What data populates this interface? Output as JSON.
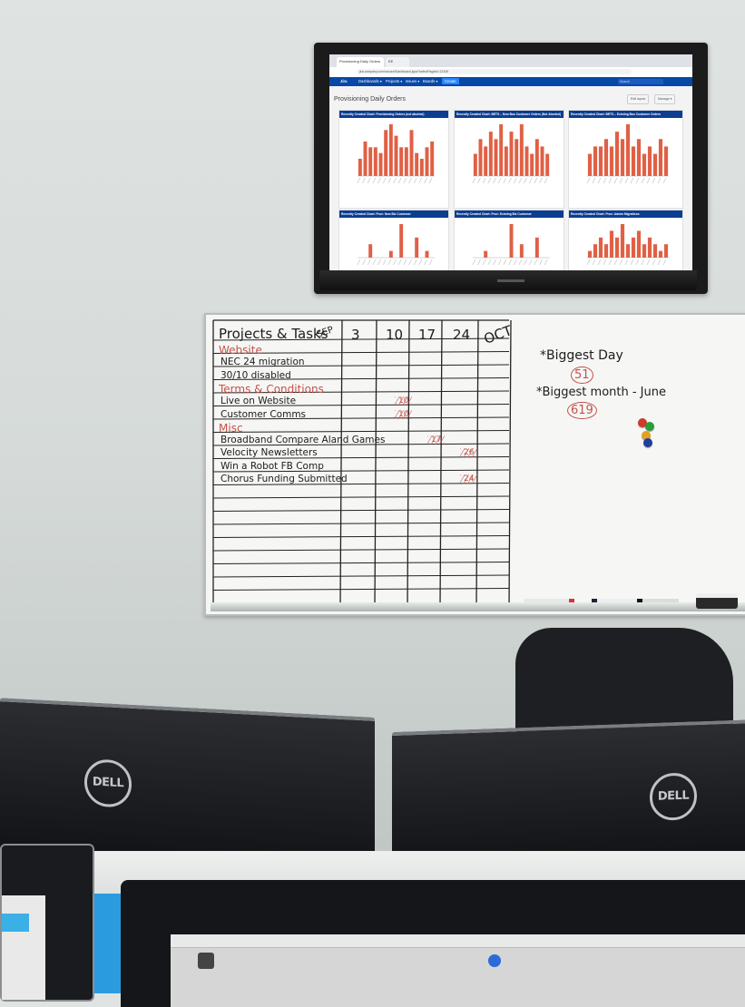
{
  "browser": {
    "tabs": [
      "Provisioning Daily Orders",
      "EE"
    ],
    "url": "jira.company.com/secure/Dashboard.jspa?selectPageId=12345"
  },
  "jira": {
    "logo": "Jira",
    "nav": [
      "Dashboards ▾",
      "Projects ▾",
      "Issues ▾",
      "Boards ▾"
    ],
    "create": "Create",
    "search_placeholder": "Search",
    "dashboard_title": "Provisioning Daily Orders",
    "buttons": [
      "Edit layout",
      "Manage ▾"
    ]
  },
  "gadgets": [
    {
      "title": "Recently Created Chart: Provisioning Orders (not aborted)",
      "values": [
        3,
        6,
        5,
        5,
        4,
        8,
        9,
        7,
        5,
        5,
        8,
        4,
        3,
        5,
        6
      ]
    },
    {
      "title": "Recently Created Chart: BETS – New Bus Customer Orders (Not Aborted)",
      "values": [
        3,
        5,
        4,
        6,
        5,
        7,
        4,
        6,
        5,
        7,
        4,
        3,
        5,
        4,
        3
      ]
    },
    {
      "title": "Recently Created Chart: BETS – Existing Bus Customer Orders",
      "values": [
        3,
        4,
        4,
        5,
        4,
        6,
        5,
        7,
        4,
        5,
        3,
        4,
        3,
        5,
        4
      ]
    },
    {
      "title": "Recently Created Chart: Prov: New Biz Customer",
      "values": [
        0,
        0,
        2,
        0,
        0,
        0,
        1,
        0,
        5,
        0,
        0,
        3,
        0,
        1,
        0
      ]
    },
    {
      "title": "Recently Created Chart: Prov: Existing Biz Customer",
      "values": [
        0,
        0,
        1,
        0,
        0,
        0,
        0,
        5,
        0,
        2,
        0,
        0,
        3,
        0,
        0
      ]
    },
    {
      "title": "Recently Created Chart: Prov: Admin Migrations",
      "values": [
        1,
        2,
        3,
        2,
        4,
        3,
        5,
        2,
        3,
        4,
        2,
        3,
        2,
        1,
        2
      ]
    }
  ],
  "whiteboard": {
    "header": "Projects & Tasks",
    "columns": [
      "SEP",
      "3",
      "10",
      "17",
      "24",
      "OCT"
    ],
    "sections": [
      {
        "heading": "Website",
        "color": "#c4524a"
      },
      {
        "task": "NEC 24 migration"
      },
      {
        "task": "30/10 disabled"
      },
      {
        "heading": "Terms & Conditions",
        "color": "#c4524a"
      },
      {
        "task": "Live on Website",
        "marks": [
          {
            "col": 2,
            "text": "10"
          }
        ]
      },
      {
        "task": "Customer Comms",
        "marks": [
          {
            "col": 2,
            "text": "10"
          }
        ]
      },
      {
        "heading": "Misc",
        "color": "#c4524a"
      },
      {
        "task": "Broadband Compare Aland Games",
        "marks": [
          {
            "col": 3,
            "text": "17"
          }
        ]
      },
      {
        "task": "Velocity Newsletters",
        "marks": [
          {
            "col": 4,
            "text": "26"
          }
        ]
      },
      {
        "task": "Win a Robot FB Comp"
      },
      {
        "task": "Chorus Funding Submitted",
        "marks": [
          {
            "col": 4,
            "text": "24"
          }
        ]
      }
    ],
    "notes": [
      {
        "label": "*Biggest Day",
        "value": "51"
      },
      {
        "label": "*Biggest month - June",
        "value": "619"
      }
    ],
    "magnet_colors": [
      "#d13b2b",
      "#2a9d3b",
      "#e2a023",
      "#1f3f9a"
    ]
  },
  "monitors": {
    "brand": "DELL"
  },
  "colors": {
    "jira_blue": "#0747a6",
    "bar": "#e06045",
    "marker_red": "#c4524a",
    "marker_black": "#1c1c1c"
  }
}
